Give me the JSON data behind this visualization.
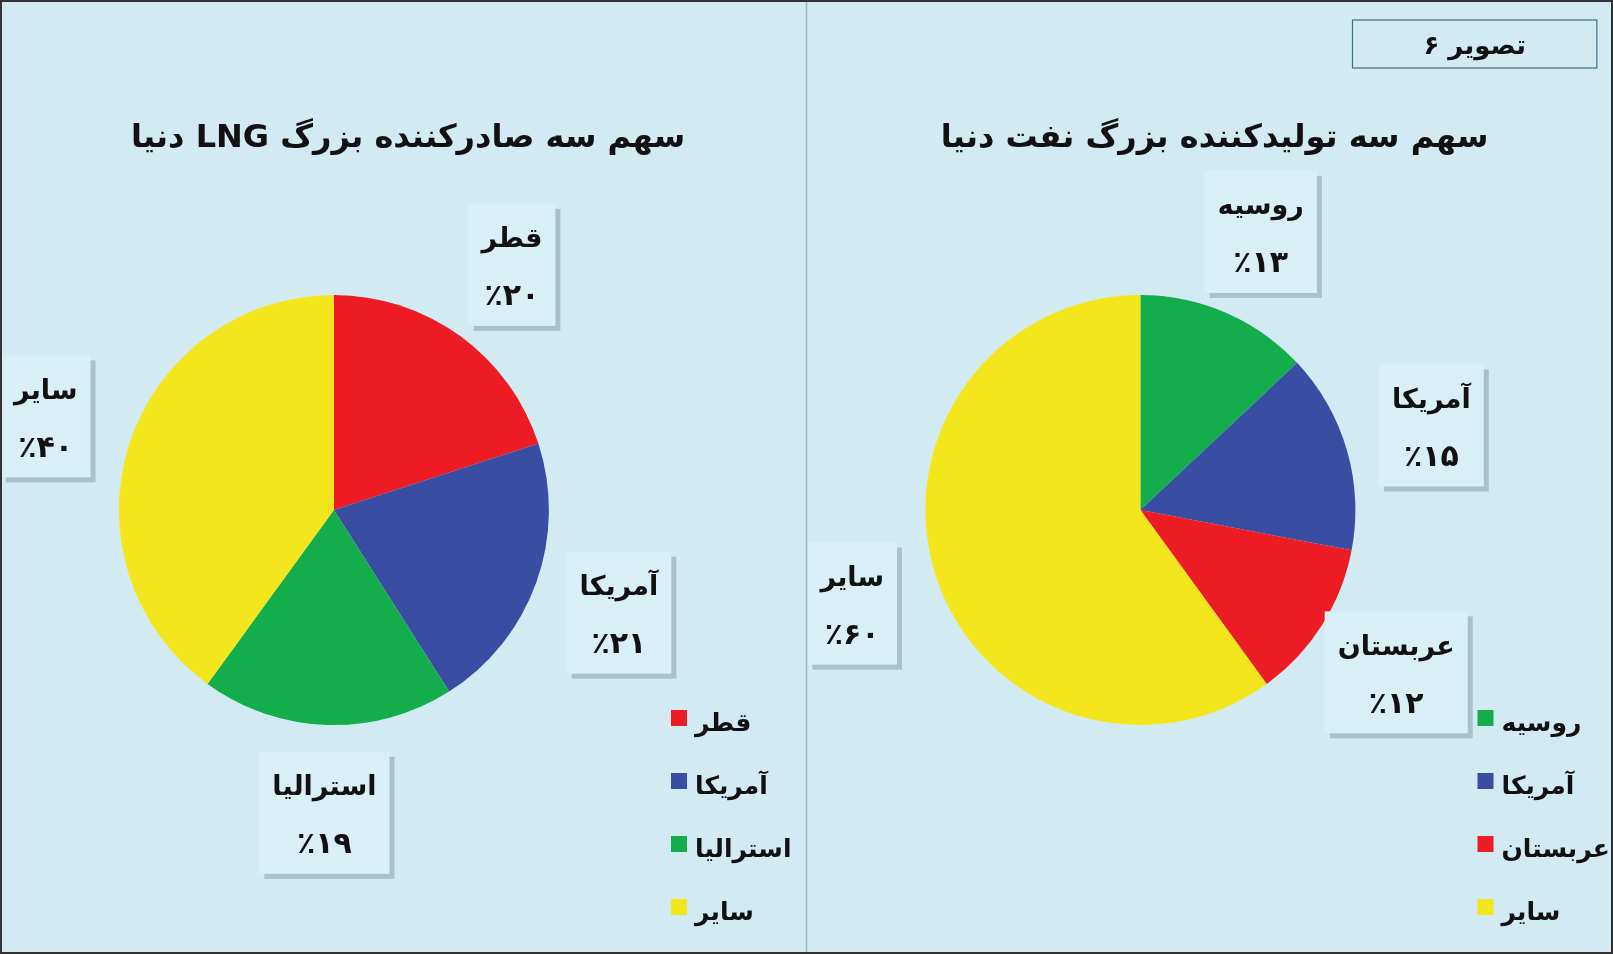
{
  "chart_data": [
    {
      "type": "pie",
      "title": "سهم سه تولیدکننده بزرگ نفت دنیا",
      "categories": [
        "روسیه",
        "آمریکا",
        "عربستان",
        "سایر"
      ],
      "values": [
        13,
        15,
        12,
        60
      ],
      "colors": [
        "#13ad4b",
        "#394ea2",
        "#ed1c24",
        "#f4e61c"
      ],
      "value_labels": [
        "٪۱۳",
        "٪۱۵",
        "٪۱۲",
        "٪۶۰"
      ],
      "legend": "bottom right",
      "annotations": [
        "تصویر ۶"
      ]
    },
    {
      "type": "pie",
      "title": "سهم سه صادرکننده بزرگ LNG دنیا",
      "categories": [
        "قطر",
        "آمریکا",
        "استرالیا",
        "سایر"
      ],
      "values": [
        20,
        21,
        19,
        40
      ],
      "colors": [
        "#ed1c24",
        "#394ea2",
        "#13ad4b",
        "#f4e61c"
      ],
      "value_labels": [
        "٪۲۰",
        "٪۲۱",
        "٪۱۹",
        "٪۴۰"
      ],
      "legend": "bottom right"
    }
  ]
}
